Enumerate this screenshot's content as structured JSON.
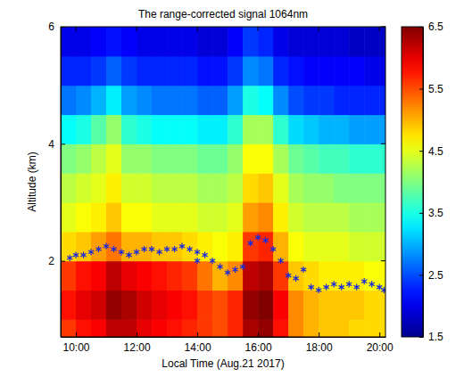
{
  "chart_data": {
    "type": "heatmap",
    "title": "The range-corrected signal 1064nm",
    "x_label": "Local Time (Aug.21 2017)",
    "y_label": "Altitude (km)",
    "color": "jet",
    "xlim": [
      9.5,
      20.2
    ],
    "xticks": [
      {
        "value": 10,
        "label": "10:00"
      },
      {
        "value": 12,
        "label": "12:00"
      },
      {
        "value": 14,
        "label": "14:00"
      },
      {
        "value": 16,
        "label": "16:00"
      },
      {
        "value": 18,
        "label": "18:00"
      },
      {
        "value": 20,
        "label": "20:00"
      }
    ],
    "ylim": [
      0.7,
      6
    ],
    "yticks": [
      2,
      4,
      6
    ],
    "x": [
      9.75,
      10.25,
      10.75,
      11.25,
      11.75,
      12.25,
      12.75,
      13.25,
      13.75,
      14.25,
      14.75,
      15.25,
      15.75,
      16.25,
      16.75,
      17.25,
      17.75,
      18.25,
      18.75,
      19.25,
      19.75,
      20.25
    ],
    "y": [
      0.75,
      1.25,
      1.75,
      2.25,
      2.75,
      3.25,
      3.75,
      4.25,
      4.75,
      5.25,
      5.75
    ],
    "z": [
      [
        5.6,
        5.8,
        5.9,
        6.2,
        6.2,
        6.0,
        5.9,
        5.8,
        5.7,
        5.6,
        5.5,
        5.7,
        6.3,
        6.4,
        5.8,
        5.2,
        5.0,
        4.9,
        4.9,
        4.8,
        4.8,
        4.8
      ],
      [
        5.8,
        6.0,
        6.1,
        6.4,
        6.3,
        6.1,
        6.0,
        5.9,
        5.8,
        5.6,
        5.5,
        5.7,
        6.4,
        6.5,
        5.9,
        5.2,
        5.0,
        4.9,
        4.9,
        4.9,
        4.8,
        4.8
      ],
      [
        5.6,
        5.8,
        5.9,
        6.2,
        6.0,
        5.9,
        5.8,
        5.7,
        5.6,
        5.3,
        5.0,
        5.2,
        6.2,
        6.3,
        5.6,
        4.9,
        4.8,
        4.7,
        4.7,
        4.7,
        4.6,
        4.6
      ],
      [
        4.8,
        4.9,
        5.1,
        5.3,
        5.0,
        5.0,
        4.9,
        4.9,
        4.8,
        4.7,
        4.6,
        4.7,
        5.6,
        5.7,
        5.0,
        4.6,
        4.5,
        4.5,
        4.5,
        4.4,
        4.4,
        4.4
      ],
      [
        4.5,
        4.6,
        4.7,
        4.9,
        4.6,
        4.6,
        4.5,
        4.5,
        4.5,
        4.4,
        4.4,
        4.5,
        5.1,
        5.2,
        4.7,
        4.4,
        4.3,
        4.3,
        4.3,
        4.2,
        4.2,
        4.2
      ],
      [
        4.3,
        4.4,
        4.5,
        4.7,
        4.4,
        4.4,
        4.3,
        4.3,
        4.3,
        4.2,
        4.2,
        4.3,
        4.8,
        4.9,
        4.5,
        4.2,
        4.1,
        4.1,
        4.0,
        4.0,
        4.0,
        4.0
      ],
      [
        4.0,
        4.1,
        4.3,
        4.5,
        4.1,
        4.1,
        4.0,
        4.0,
        4.0,
        3.9,
        3.9,
        4.1,
        4.6,
        4.6,
        4.2,
        3.9,
        3.8,
        3.7,
        3.7,
        3.6,
        3.6,
        3.6
      ],
      [
        3.4,
        3.5,
        3.8,
        4.1,
        3.6,
        3.5,
        3.4,
        3.4,
        3.4,
        3.3,
        3.3,
        3.6,
        4.2,
        4.2,
        3.6,
        3.2,
        3.1,
        3.0,
        3.0,
        2.9,
        2.9,
        2.9
      ],
      [
        2.7,
        2.8,
        3.0,
        3.3,
        2.9,
        2.8,
        2.7,
        2.7,
        2.7,
        2.6,
        2.6,
        2.9,
        3.5,
        3.4,
        2.8,
        2.5,
        2.4,
        2.4,
        2.3,
        2.3,
        2.3,
        2.3
      ],
      [
        2.3,
        2.3,
        2.4,
        2.6,
        2.4,
        2.3,
        2.3,
        2.3,
        2.3,
        2.2,
        2.2,
        2.4,
        2.8,
        2.7,
        2.3,
        2.2,
        2.1,
        2.1,
        2.1,
        2.1,
        2.0,
        2.0
      ],
      [
        2.0,
        2.0,
        2.1,
        2.2,
        2.1,
        2.0,
        2.0,
        2.0,
        2.0,
        1.9,
        1.9,
        2.1,
        2.4,
        2.3,
        2.0,
        1.9,
        1.9,
        1.9,
        1.9,
        1.8,
        1.8,
        1.8
      ]
    ],
    "colorbar": {
      "range": [
        1.5,
        6.5
      ],
      "ticks": [
        1.5,
        2.5,
        3.5,
        4.5,
        5.5,
        6.5
      ]
    },
    "series": [
      {
        "type": "scatter",
        "color": "#1a2adb",
        "marker": "asterisk",
        "x": [
          9.8,
          10.0,
          10.25,
          10.5,
          10.75,
          11.0,
          11.25,
          11.5,
          11.75,
          12.0,
          12.25,
          12.5,
          12.75,
          13.0,
          13.25,
          13.5,
          13.75,
          14.0,
          14.0,
          14.25,
          14.5,
          14.75,
          15.0,
          15.25,
          15.5,
          15.75,
          16.0,
          16.25,
          16.5,
          16.75,
          17.0,
          17.25,
          17.5,
          17.75,
          18.0,
          18.25,
          18.5,
          18.75,
          19.0,
          19.25,
          19.5,
          19.75,
          20.0,
          20.15
        ],
        "values": [
          2.05,
          2.1,
          2.1,
          2.15,
          2.2,
          2.25,
          2.2,
          2.15,
          2.1,
          2.15,
          2.2,
          2.2,
          2.15,
          2.2,
          2.2,
          2.25,
          2.2,
          2.15,
          2.0,
          2.1,
          2.0,
          1.9,
          1.8,
          1.85,
          1.9,
          2.3,
          2.4,
          2.35,
          2.2,
          2.0,
          1.75,
          1.7,
          1.85,
          1.55,
          1.5,
          1.55,
          1.6,
          1.55,
          1.6,
          1.55,
          1.65,
          1.6,
          1.55,
          1.5
        ]
      }
    ]
  }
}
